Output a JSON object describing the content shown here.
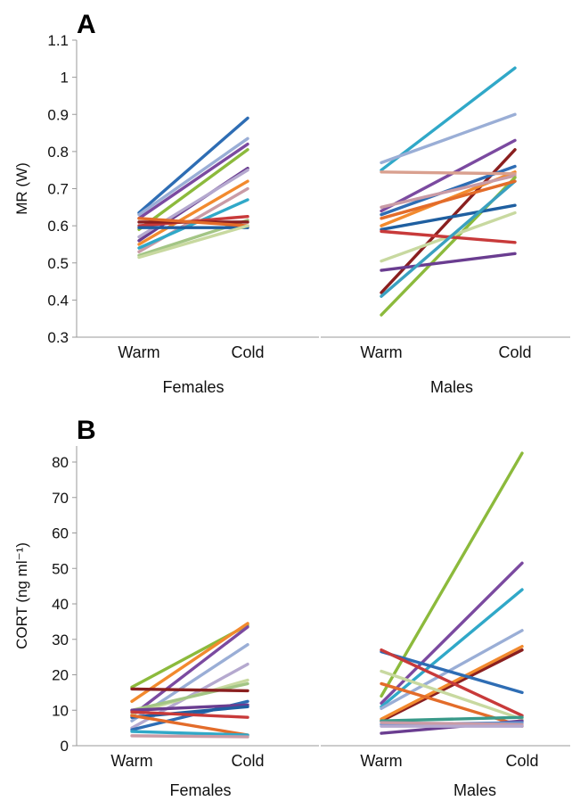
{
  "chart_data": [
    {
      "panel": "A",
      "type": "line",
      "ylabel": "MR (W)",
      "ylim": [
        0.3,
        1.1
      ],
      "yticks": [
        "0.3",
        "0.4",
        "0.5",
        "0.6",
        "0.7",
        "0.8",
        "0.9",
        "1",
        "1.1"
      ],
      "categories": [
        "Warm",
        "Cold"
      ],
      "groups": [
        {
          "name": "Females",
          "series": [
            {
              "color": "#2e6db4",
              "values": [
                0.635,
                0.89
              ]
            },
            {
              "color": "#9aaed6",
              "values": [
                0.63,
                0.835
              ]
            },
            {
              "color": "#7b4aa0",
              "values": [
                0.62,
                0.82
              ]
            },
            {
              "color": "#8cba3c",
              "values": [
                0.59,
                0.805
              ]
            },
            {
              "color": "#6a3d90",
              "values": [
                0.56,
                0.755
              ]
            },
            {
              "color": "#b5a9cf",
              "values": [
                0.57,
                0.75
              ]
            },
            {
              "color": "#f28a2e",
              "values": [
                0.55,
                0.72
              ]
            },
            {
              "color": "#c99ba6",
              "values": [
                0.53,
                0.7
              ]
            },
            {
              "color": "#30a8c8",
              "values": [
                0.54,
                0.67
              ]
            },
            {
              "color": "#c83a3a",
              "values": [
                0.6,
                0.625
              ]
            },
            {
              "color": "#a3c585",
              "values": [
                0.52,
                0.615
              ]
            },
            {
              "color": "#8a1f1f",
              "values": [
                0.61,
                0.61
              ]
            },
            {
              "color": "#1f5fa0",
              "values": [
                0.595,
                0.595
              ]
            },
            {
              "color": "#e36c2a",
              "values": [
                0.62,
                0.6
              ]
            },
            {
              "color": "#c8d9a0",
              "values": [
                0.515,
                0.6
              ]
            }
          ]
        },
        {
          "name": "Males",
          "series": [
            {
              "color": "#30a8c8",
              "values": [
                0.75,
                1.025
              ]
            },
            {
              "color": "#9aaed6",
              "values": [
                0.77,
                0.9
              ]
            },
            {
              "color": "#7b4aa0",
              "values": [
                0.64,
                0.83
              ]
            },
            {
              "color": "#8a1f1f",
              "values": [
                0.42,
                0.805
              ]
            },
            {
              "color": "#2e6db4",
              "values": [
                0.63,
                0.76
              ]
            },
            {
              "color": "#f28a2e",
              "values": [
                0.6,
                0.745
              ]
            },
            {
              "color": "#d9a08f",
              "values": [
                0.745,
                0.74
              ]
            },
            {
              "color": "#c99ba6",
              "values": [
                0.65,
                0.735
              ]
            },
            {
              "color": "#8cba3c",
              "values": [
                0.36,
                0.73
              ]
            },
            {
              "color": "#6a3d90",
              "values": [
                0.48,
                0.525
              ]
            },
            {
              "color": "#1f5fa0",
              "values": [
                0.59,
                0.655
              ]
            },
            {
              "color": "#c8d9a0",
              "values": [
                0.505,
                0.635
              ]
            },
            {
              "color": "#c83a3a",
              "values": [
                0.585,
                0.555
              ]
            },
            {
              "color": "#3aa0c0",
              "values": [
                0.41,
                0.72
              ]
            },
            {
              "color": "#e36c2a",
              "values": [
                0.62,
                0.72
              ]
            }
          ]
        }
      ]
    },
    {
      "panel": "B",
      "type": "line",
      "ylabel": "CORT (ng ml⁻¹)",
      "ylim": [
        0,
        85
      ],
      "yticks": [
        "0",
        "10",
        "20",
        "30",
        "40",
        "50",
        "60",
        "70",
        "80"
      ],
      "categories": [
        "Warm",
        "Cold"
      ],
      "groups": [
        {
          "name": "Females",
          "series": [
            {
              "color": "#8cba3c",
              "values": [
                16.5,
                34
              ]
            },
            {
              "color": "#f28a2e",
              "values": [
                12.5,
                34.5
              ]
            },
            {
              "color": "#7b4aa0",
              "values": [
                8.5,
                33.5
              ]
            },
            {
              "color": "#9aaed6",
              "values": [
                7,
                28.5
              ]
            },
            {
              "color": "#b5a9cf",
              "values": [
                5,
                23
              ]
            },
            {
              "color": "#c8d9a0",
              "values": [
                9,
                18.5
              ]
            },
            {
              "color": "#a3c585",
              "values": [
                10,
                17.5
              ]
            },
            {
              "color": "#8a1f1f",
              "values": [
                16,
                15.5
              ]
            },
            {
              "color": "#2e6db4",
              "values": [
                4.5,
                12.5
              ]
            },
            {
              "color": "#6a3d90",
              "values": [
                10,
                11.5
              ]
            },
            {
              "color": "#1f5fa0",
              "values": [
                8,
                11
              ]
            },
            {
              "color": "#c83a3a",
              "values": [
                9.5,
                8
              ]
            },
            {
              "color": "#e36c2a",
              "values": [
                8.5,
                3
              ]
            },
            {
              "color": "#30a8c8",
              "values": [
                4,
                3
              ]
            },
            {
              "color": "#c99ba6",
              "values": [
                2.8,
                2.5
              ]
            }
          ]
        },
        {
          "name": "Males",
          "series": [
            {
              "color": "#8cba3c",
              "values": [
                14,
                82.5
              ]
            },
            {
              "color": "#7b4aa0",
              "values": [
                12,
                51.5
              ]
            },
            {
              "color": "#30a8c8",
              "values": [
                11,
                44
              ]
            },
            {
              "color": "#9aaed6",
              "values": [
                10.5,
                32.5
              ]
            },
            {
              "color": "#8a1f1f",
              "values": [
                7,
                27
              ]
            },
            {
              "color": "#f28a2e",
              "values": [
                7.5,
                28
              ]
            },
            {
              "color": "#2e6db4",
              "values": [
                26.5,
                15
              ]
            },
            {
              "color": "#c83a3a",
              "values": [
                27,
                8.5
              ]
            },
            {
              "color": "#c8d9a0",
              "values": [
                21,
                7.5
              ]
            },
            {
              "color": "#e36c2a",
              "values": [
                17.5,
                5.5
              ]
            },
            {
              "color": "#3a9a8a",
              "values": [
                7,
                8
              ]
            },
            {
              "color": "#6a3d90",
              "values": [
                3.5,
                7
              ]
            },
            {
              "color": "#5b8fd0",
              "values": [
                6,
                6.5
              ]
            },
            {
              "color": "#c99ba6",
              "values": [
                6.5,
                6
              ]
            },
            {
              "color": "#b5a9cf",
              "values": [
                5.5,
                5.5
              ]
            }
          ]
        }
      ]
    }
  ]
}
